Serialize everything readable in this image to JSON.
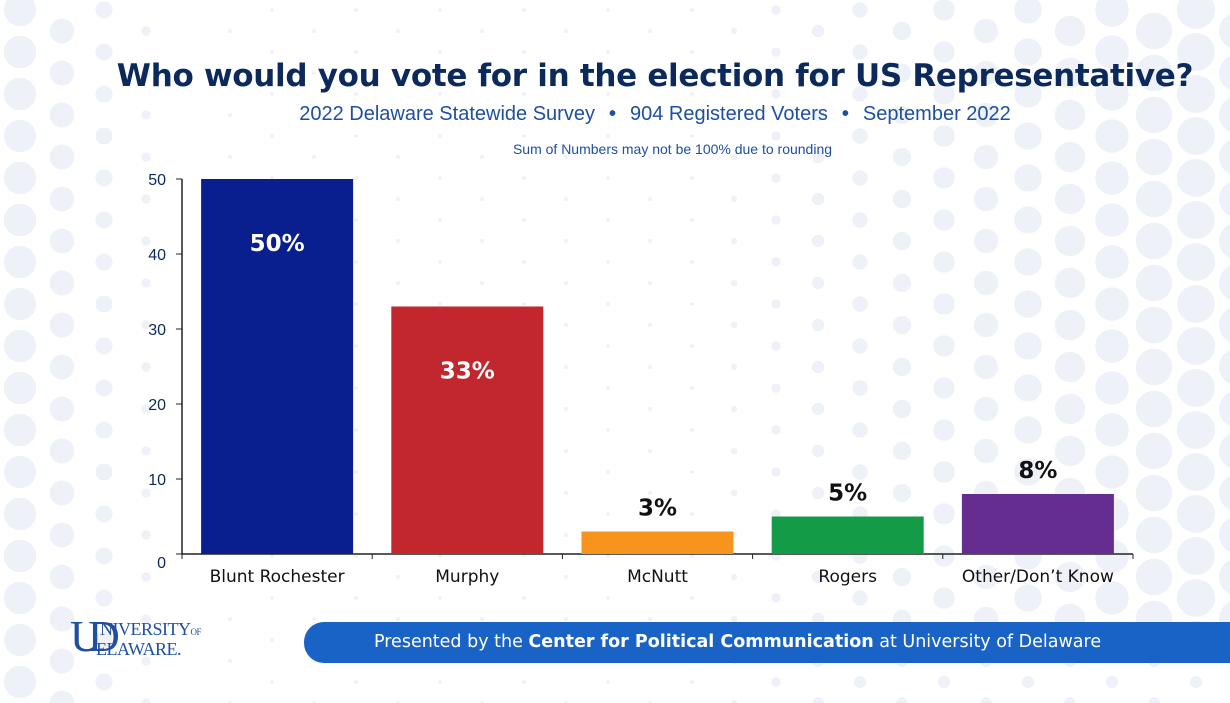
{
  "header": {
    "title": "Who would you vote for in the election for US Representative?",
    "subtitle_parts": [
      "2022 Delaware Statewide Survey",
      "904 Registered Voters",
      "September 2022"
    ],
    "separator": "•",
    "note": "Sum of Numbers may not be 100% due to rounding"
  },
  "footer": {
    "logo_text_1": "NIVERSITY",
    "logo_text_of": "OF",
    "logo_text_2": "ELAWARE.",
    "banner_prefix": "Presented by the ",
    "banner_bold": "Center for Political Communication",
    "banner_suffix": " at University of Delaware"
  },
  "colors": {
    "title": "#0b2a5b",
    "subtitle": "#1f4fa0",
    "banner": "#1a63c6",
    "dots": "#eef1f7"
  },
  "chart_data": {
    "type": "bar",
    "title": "Who would you vote for in the election for US Representative?",
    "categories": [
      "Blunt Rochester",
      "Murphy",
      "McNutt",
      "Rogers",
      "Other/Don’t Know"
    ],
    "values": [
      50,
      33,
      3,
      5,
      8
    ],
    "labels": [
      "50%",
      "33%",
      "3%",
      "5%",
      "8%"
    ],
    "colors": [
      "#0a1f8f",
      "#c1272d",
      "#f7941d",
      "#139b48",
      "#662d91"
    ],
    "label_inside": [
      true,
      true,
      false,
      false,
      false
    ],
    "y_ticks": [
      0,
      10,
      20,
      30,
      40,
      50
    ],
    "ylim": [
      0,
      50
    ],
    "grid": false,
    "legend": "none"
  }
}
